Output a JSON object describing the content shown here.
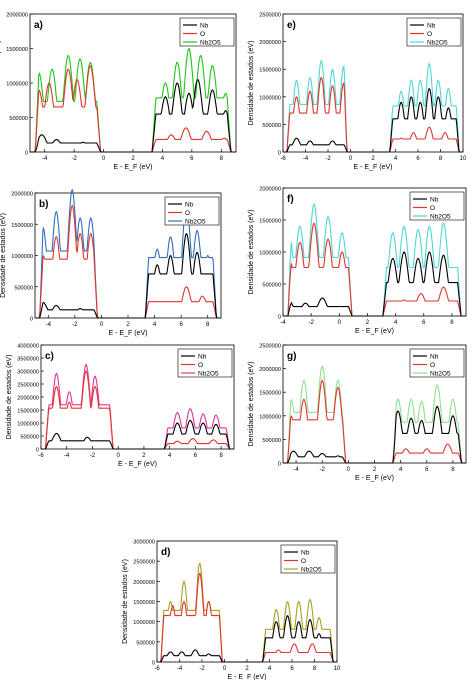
{
  "colors": {
    "nb": "#000000",
    "o": "#e0362e",
    "total_green": "#22c41a",
    "total_blue": "#2f6fc0",
    "total_magenta": "#e0339a",
    "total_cyan": "#4fd6d6",
    "total_lightgreen": "#8fe08f",
    "total_olive": "#a8a020"
  },
  "chart_data": [
    {
      "panel": "a",
      "label": "a)",
      "type": "line",
      "xlabel": "E - E_F (eV)",
      "ylabel": "Densidade de estados (eV)",
      "xlim": [
        -5,
        9
      ],
      "ylim": [
        0,
        2000000
      ],
      "xticks": [
        -4,
        -2,
        0,
        2,
        4,
        6,
        8
      ],
      "yticks": [
        0,
        500000,
        1000000,
        1500000,
        2000000
      ],
      "gap": [
        -0.2,
        3.3
      ],
      "total_color": "total_green",
      "series": [
        {
          "name": "Nb",
          "peaks": [
            [
              -4.2,
              250000
            ],
            [
              -3.2,
              180000
            ],
            [
              -1.4,
              140000
            ],
            [
              4.2,
              800000
            ],
            [
              5.0,
              1000000
            ],
            [
              5.8,
              850000
            ],
            [
              6.4,
              1050000
            ],
            [
              7.4,
              900000
            ],
            [
              8.3,
              600000
            ]
          ]
        },
        {
          "name": "O",
          "peaks": [
            [
              -4.4,
              900000
            ],
            [
              -3.7,
              1000000
            ],
            [
              -2.4,
              1200000
            ],
            [
              -1.8,
              1050000
            ],
            [
              -0.9,
              1250000
            ],
            [
              4.6,
              250000
            ],
            [
              5.6,
              350000
            ],
            [
              7.0,
              300000
            ],
            [
              8.2,
              200000
            ]
          ]
        },
        {
          "name": "Nb2O5",
          "peaks": [
            [
              -4.4,
              1150000
            ],
            [
              -3.5,
              1200000
            ],
            [
              -2.4,
              1400000
            ],
            [
              -1.6,
              1350000
            ],
            [
              -0.9,
              1300000
            ],
            [
              4.2,
              1000000
            ],
            [
              5.0,
              1300000
            ],
            [
              5.8,
              1500000
            ],
            [
              6.6,
              1400000
            ],
            [
              7.4,
              1250000
            ],
            [
              8.3,
              850000
            ]
          ]
        }
      ]
    },
    {
      "panel": "e",
      "label": "e)",
      "type": "line",
      "xlabel": "E - E_F (eV)",
      "ylabel": "Densidade de estados (eV)",
      "xlim": [
        -6,
        10
      ],
      "ylim": [
        0,
        2500000
      ],
      "xticks": [
        -6,
        -4,
        -2,
        0,
        2,
        4,
        6,
        8,
        10
      ],
      "yticks": [
        0,
        500000,
        1000000,
        1500000,
        2000000,
        2500000
      ],
      "gap": [
        -0.3,
        3.5
      ],
      "total_color": "total_cyan",
      "series": [
        {
          "name": "Nb",
          "peaks": [
            [
              -4.8,
              250000
            ],
            [
              -3.6,
              200000
            ],
            [
              -1.6,
              200000
            ],
            [
              4.5,
              900000
            ],
            [
              5.4,
              1000000
            ],
            [
              6.2,
              900000
            ],
            [
              7.0,
              1150000
            ],
            [
              7.8,
              1000000
            ],
            [
              8.7,
              800000
            ]
          ]
        },
        {
          "name": "O",
          "peaks": [
            [
              -4.8,
              1000000
            ],
            [
              -3.6,
              1100000
            ],
            [
              -2.6,
              1350000
            ],
            [
              -1.6,
              1200000
            ],
            [
              -0.6,
              1250000
            ],
            [
              4.5,
              250000
            ],
            [
              5.6,
              350000
            ],
            [
              7.0,
              450000
            ],
            [
              8.4,
              350000
            ]
          ]
        },
        {
          "name": "Nb2O5",
          "peaks": [
            [
              -4.8,
              1300000
            ],
            [
              -3.6,
              1350000
            ],
            [
              -2.6,
              1650000
            ],
            [
              -1.6,
              1500000
            ],
            [
              -0.6,
              1550000
            ],
            [
              4.5,
              1100000
            ],
            [
              5.4,
              1300000
            ],
            [
              6.2,
              1300000
            ],
            [
              7.0,
              1600000
            ],
            [
              7.8,
              1300000
            ],
            [
              8.7,
              1150000
            ]
          ]
        }
      ]
    },
    {
      "panel": "b",
      "label": "b)",
      "type": "line",
      "xlabel": "E - E_F (eV)",
      "ylabel": "Densidade de estados (eV)",
      "xlim": [
        -5,
        9
      ],
      "ylim": [
        0,
        2000000
      ],
      "xticks": [
        -4,
        -2,
        0,
        2,
        4,
        6,
        8
      ],
      "yticks": [
        0,
        500000,
        1000000,
        1500000,
        2000000
      ],
      "gap": [
        -0.3,
        3.3
      ],
      "total_color": "total_blue",
      "series": [
        {
          "name": "Nb",
          "peaks": [
            [
              -4.4,
              250000
            ],
            [
              -3.4,
              200000
            ],
            [
              -1.6,
              150000
            ],
            [
              4.2,
              850000
            ],
            [
              5.2,
              1000000
            ],
            [
              6.4,
              1350000
            ],
            [
              7.2,
              1050000
            ],
            [
              8.0,
              700000
            ]
          ]
        },
        {
          "name": "O",
          "peaks": [
            [
              -4.4,
              1000000
            ],
            [
              -3.4,
              1300000
            ],
            [
              -2.2,
              1800000
            ],
            [
              -1.6,
              1350000
            ],
            [
              -0.8,
              1350000
            ],
            [
              4.6,
              200000
            ],
            [
              6.4,
              500000
            ],
            [
              7.6,
              350000
            ]
          ]
        },
        {
          "name": "Nb2O5",
          "peaks": [
            [
              -4.4,
              1450000
            ],
            [
              -3.4,
              1700000
            ],
            [
              -2.2,
              2050000
            ],
            [
              -1.6,
              1600000
            ],
            [
              -0.8,
              1600000
            ],
            [
              4.2,
              1100000
            ],
            [
              5.2,
              1300000
            ],
            [
              6.4,
              1850000
            ],
            [
              7.2,
              1400000
            ],
            [
              8.0,
              1000000
            ]
          ]
        }
      ]
    },
    {
      "panel": "f",
      "label": "f)",
      "type": "line",
      "xlabel": "E - E_F (eV)",
      "ylabel": "Densidade de estados (eV)",
      "xlim": [
        -4,
        9
      ],
      "ylim": [
        0,
        2000000
      ],
      "xticks": [
        -4,
        -2,
        0,
        2,
        4,
        6,
        8
      ],
      "yticks": [
        0,
        500000,
        1000000,
        1500000,
        2000000
      ],
      "gap": [
        0.9,
        3.1
      ],
      "total_color": "total_cyan",
      "series": [
        {
          "name": "Nb",
          "peaks": [
            [
              -3.6,
              250000
            ],
            [
              -2.4,
              200000
            ],
            [
              -1.2,
              280000
            ],
            [
              0.0,
              150000
            ],
            [
              3.8,
              900000
            ],
            [
              4.6,
              1000000
            ],
            [
              5.6,
              900000
            ],
            [
              6.4,
              1000000
            ],
            [
              7.4,
              950000
            ]
          ]
        },
        {
          "name": "O",
          "peaks": [
            [
              -3.6,
              1000000
            ],
            [
              -2.8,
              1150000
            ],
            [
              -1.8,
              1450000
            ],
            [
              -0.8,
              1200000
            ],
            [
              0.2,
              1000000
            ],
            [
              4.6,
              250000
            ],
            [
              5.8,
              350000
            ],
            [
              7.4,
              450000
            ]
          ]
        },
        {
          "name": "Nb2O5",
          "peaks": [
            [
              -3.6,
              1400000
            ],
            [
              -2.8,
              1400000
            ],
            [
              -1.8,
              1750000
            ],
            [
              -0.8,
              1550000
            ],
            [
              0.2,
              1300000
            ],
            [
              3.8,
              1300000
            ],
            [
              4.6,
              1400000
            ],
            [
              5.6,
              1350000
            ],
            [
              6.4,
              1400000
            ],
            [
              7.4,
              1450000
            ]
          ]
        }
      ]
    },
    {
      "panel": "c",
      "label": "c)",
      "type": "line",
      "xlabel": "E - E_F (eV)",
      "ylabel": "Densidade de estados (eV)",
      "xlim": [
        -6,
        9
      ],
      "ylim": [
        0,
        4000000
      ],
      "xticks": [
        -6,
        -4,
        -2,
        0,
        2,
        4,
        6,
        8
      ],
      "yticks": [
        0,
        500000,
        1000000,
        1500000,
        2000000,
        2500000,
        3000000,
        3500000,
        4000000
      ],
      "gap": [
        -0.4,
        3.6
      ],
      "total_color": "total_magenta",
      "series": [
        {
          "name": "Nb",
          "peaks": [
            [
              -4.8,
              600000
            ],
            [
              -3.6,
              300000
            ],
            [
              -2.4,
              450000
            ],
            [
              -1.0,
              250000
            ],
            [
              4.6,
              1000000
            ],
            [
              5.6,
              1100000
            ],
            [
              6.6,
              1000000
            ],
            [
              7.6,
              950000
            ]
          ]
        },
        {
          "name": "O",
          "peaks": [
            [
              -4.8,
              2400000
            ],
            [
              -3.8,
              1800000
            ],
            [
              -2.5,
              3000000
            ],
            [
              -1.8,
              2400000
            ],
            [
              -1.0,
              1500000
            ],
            [
              4.6,
              300000
            ],
            [
              5.8,
              400000
            ],
            [
              7.4,
              350000
            ]
          ]
        },
        {
          "name": "Nb2O5",
          "peaks": [
            [
              -4.8,
              2900000
            ],
            [
              -3.8,
              2200000
            ],
            [
              -2.5,
              3250000
            ],
            [
              -1.8,
              2800000
            ],
            [
              -1.0,
              1700000
            ],
            [
              4.6,
              1400000
            ],
            [
              5.6,
              1550000
            ],
            [
              6.6,
              1350000
            ],
            [
              7.6,
              1300000
            ]
          ]
        }
      ]
    },
    {
      "panel": "g",
      "label": "g)",
      "type": "line",
      "xlabel": "E - E_F (eV)",
      "ylabel": "Densidade de estados (eV)",
      "xlim": [
        -5,
        9
      ],
      "ylim": [
        0,
        2500000
      ],
      "xticks": [
        -4,
        -2,
        0,
        2,
        4,
        6,
        8
      ],
      "yticks": [
        0,
        500000,
        1000000,
        1500000,
        2000000,
        2500000
      ],
      "gap": [
        -0.2,
        3.4
      ],
      "total_color": "total_lightgreen",
      "series": [
        {
          "name": "Nb",
          "peaks": [
            [
              -4.2,
              250000
            ],
            [
              -3.0,
              250000
            ],
            [
              -2.0,
              200000
            ],
            [
              -0.8,
              150000
            ],
            [
              3.8,
              1100000
            ],
            [
              4.8,
              950000
            ],
            [
              5.6,
              900000
            ],
            [
              6.8,
              1200000
            ],
            [
              8.0,
              1000000
            ]
          ]
        },
        {
          "name": "O",
          "peaks": [
            [
              -4.4,
              1000000
            ],
            [
              -3.4,
              1350000
            ],
            [
              -2.0,
              1750000
            ],
            [
              -0.8,
              1600000
            ],
            [
              4.4,
              300000
            ],
            [
              6.0,
              300000
            ],
            [
              7.6,
              400000
            ],
            [
              8.6,
              250000
            ]
          ]
        },
        {
          "name": "Nb2O5",
          "peaks": [
            [
              -4.4,
              1350000
            ],
            [
              -3.4,
              1750000
            ],
            [
              -2.0,
              2050000
            ],
            [
              -0.8,
              1750000
            ],
            [
              3.8,
              1350000
            ],
            [
              4.8,
              1350000
            ],
            [
              5.6,
              1300000
            ],
            [
              6.8,
              1650000
            ],
            [
              8.0,
              1350000
            ]
          ]
        }
      ]
    },
    {
      "panel": "d",
      "label": "d)",
      "type": "line",
      "xlabel": "E - E_F (eV)",
      "ylabel": "Densidade de estados (eV)",
      "xlim": [
        -6,
        10
      ],
      "ylim": [
        0,
        3000000
      ],
      "xticks": [
        -6,
        -4,
        -2,
        0,
        2,
        4,
        6,
        8,
        10
      ],
      "yticks": [
        0,
        500000,
        1000000,
        1500000,
        2000000,
        2500000,
        3000000
      ],
      "gap": [
        -0.2,
        3.4
      ],
      "total_color": "total_olive",
      "series": [
        {
          "name": "Nb",
          "peaks": [
            [
              -4.8,
              250000
            ],
            [
              -3.8,
              250000
            ],
            [
              -2.6,
              300000
            ],
            [
              -1.4,
              200000
            ],
            [
              4.6,
              1000000
            ],
            [
              5.6,
              1150000
            ],
            [
              6.6,
              1000000
            ],
            [
              7.6,
              1050000
            ],
            [
              8.4,
              700000
            ]
          ]
        },
        {
          "name": "O",
          "peaks": [
            [
              -4.6,
              1400000
            ],
            [
              -3.6,
              1500000
            ],
            [
              -2.2,
              2200000
            ],
            [
              -1.4,
              1500000
            ],
            [
              4.8,
              300000
            ],
            [
              6.2,
              450000
            ],
            [
              7.8,
              450000
            ]
          ]
        },
        {
          "name": "Nb2O5",
          "peaks": [
            [
              -4.8,
              1500000
            ],
            [
              -3.6,
              2000000
            ],
            [
              -2.2,
              2450000
            ],
            [
              -1.4,
              1500000
            ],
            [
              4.6,
              1300000
            ],
            [
              5.6,
              1500000
            ],
            [
              6.6,
              1500000
            ],
            [
              7.6,
              1550000
            ],
            [
              8.4,
              1100000
            ]
          ]
        }
      ]
    }
  ]
}
